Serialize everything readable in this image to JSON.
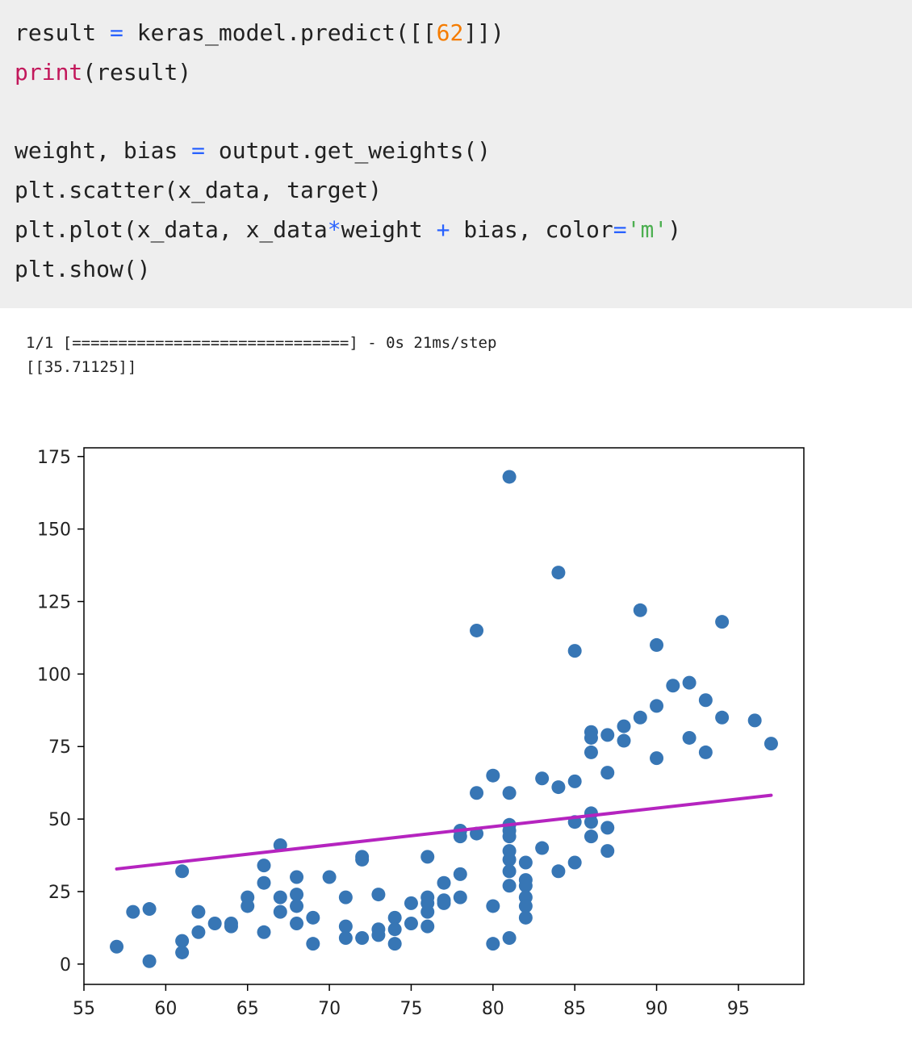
{
  "code_cell": {
    "lines": [
      [
        {
          "t": "result ",
          "c": ""
        },
        {
          "t": "=",
          "c": "op"
        },
        {
          "t": " keras_model.predict([[",
          "c": ""
        },
        {
          "t": "62",
          "c": "num"
        },
        {
          "t": "]])",
          "c": ""
        }
      ],
      [
        {
          "t": "print",
          "c": "kw"
        },
        {
          "t": "(result)",
          "c": ""
        }
      ],
      [],
      [
        {
          "t": "weight, bias ",
          "c": ""
        },
        {
          "t": "=",
          "c": "op"
        },
        {
          "t": " output.get_weights()",
          "c": ""
        }
      ],
      [
        {
          "t": "plt.scatter(x_data, target)",
          "c": ""
        }
      ],
      [
        {
          "t": "plt.plot(x_data, x_data",
          "c": ""
        },
        {
          "t": "*",
          "c": "op"
        },
        {
          "t": "weight ",
          "c": ""
        },
        {
          "t": "+",
          "c": "op"
        },
        {
          "t": " bias, color",
          "c": ""
        },
        {
          "t": "=",
          "c": "op"
        },
        {
          "t": "'m'",
          "c": "str"
        },
        {
          "t": ")",
          "c": ""
        }
      ],
      [
        {
          "t": "plt.show()",
          "c": ""
        }
      ]
    ]
  },
  "output": {
    "progress_line": "1/1 [==============================] - 0s 21ms/step",
    "result_line": "[[35.71125]]"
  },
  "chart_data": {
    "type": "scatter",
    "title": "",
    "xlabel": "",
    "ylabel": "",
    "xlim": [
      55,
      99
    ],
    "ylim": [
      -7,
      178
    ],
    "xticks": [
      55,
      60,
      65,
      70,
      75,
      80,
      85,
      90,
      95
    ],
    "yticks": [
      0,
      25,
      50,
      75,
      100,
      125,
      150,
      175
    ],
    "grid": false,
    "point_color": "#3776b5",
    "line_color": "#b524bf",
    "fit_line": {
      "x": [
        57,
        97
      ],
      "y": [
        32.8,
        58.2
      ]
    },
    "points": [
      [
        57,
        6
      ],
      [
        58,
        18
      ],
      [
        59,
        19
      ],
      [
        59,
        1
      ],
      [
        61,
        32
      ],
      [
        61,
        8
      ],
      [
        61,
        4
      ],
      [
        62,
        18
      ],
      [
        62,
        11
      ],
      [
        63,
        14
      ],
      [
        64,
        14
      ],
      [
        64,
        13
      ],
      [
        65,
        23
      ],
      [
        65,
        20
      ],
      [
        66,
        34
      ],
      [
        66,
        28
      ],
      [
        66,
        11
      ],
      [
        67,
        41
      ],
      [
        67,
        23
      ],
      [
        67,
        18
      ],
      [
        68,
        30
      ],
      [
        68,
        24
      ],
      [
        68,
        20
      ],
      [
        68,
        14
      ],
      [
        69,
        16
      ],
      [
        69,
        7
      ],
      [
        70,
        30
      ],
      [
        71,
        23
      ],
      [
        71,
        13
      ],
      [
        71,
        9
      ],
      [
        72,
        37
      ],
      [
        72,
        36
      ],
      [
        72,
        9
      ],
      [
        73,
        24
      ],
      [
        73,
        12
      ],
      [
        73,
        10
      ],
      [
        74,
        16
      ],
      [
        74,
        12
      ],
      [
        74,
        7
      ],
      [
        75,
        21
      ],
      [
        75,
        14
      ],
      [
        76,
        37
      ],
      [
        76,
        23
      ],
      [
        76,
        21
      ],
      [
        76,
        18
      ],
      [
        76,
        13
      ],
      [
        77,
        28
      ],
      [
        77,
        22
      ],
      [
        77,
        21
      ],
      [
        78,
        46
      ],
      [
        78,
        44
      ],
      [
        78,
        31
      ],
      [
        78,
        23
      ],
      [
        79,
        115
      ],
      [
        79,
        59
      ],
      [
        79,
        45
      ],
      [
        80,
        65
      ],
      [
        80,
        20
      ],
      [
        80,
        7
      ],
      [
        81,
        168
      ],
      [
        81,
        59
      ],
      [
        81,
        48
      ],
      [
        81,
        46
      ],
      [
        81,
        44
      ],
      [
        81,
        39
      ],
      [
        81,
        36
      ],
      [
        81,
        32
      ],
      [
        81,
        27
      ],
      [
        81,
        9
      ],
      [
        82,
        35
      ],
      [
        82,
        29
      ],
      [
        82,
        27
      ],
      [
        82,
        23
      ],
      [
        82,
        20
      ],
      [
        82,
        16
      ],
      [
        83,
        64
      ],
      [
        83,
        40
      ],
      [
        84,
        135
      ],
      [
        84,
        61
      ],
      [
        84,
        32
      ],
      [
        85,
        108
      ],
      [
        85,
        63
      ],
      [
        85,
        49
      ],
      [
        85,
        35
      ],
      [
        86,
        80
      ],
      [
        86,
        78
      ],
      [
        86,
        73
      ],
      [
        86,
        52
      ],
      [
        86,
        49
      ],
      [
        86,
        44
      ],
      [
        87,
        79
      ],
      [
        87,
        66
      ],
      [
        87,
        47
      ],
      [
        87,
        39
      ],
      [
        88,
        82
      ],
      [
        88,
        77
      ],
      [
        89,
        122
      ],
      [
        89,
        85
      ],
      [
        90,
        110
      ],
      [
        90,
        89
      ],
      [
        90,
        71
      ],
      [
        91,
        96
      ],
      [
        92,
        97
      ],
      [
        92,
        78
      ],
      [
        93,
        91
      ],
      [
        93,
        73
      ],
      [
        94,
        118
      ],
      [
        94,
        85
      ],
      [
        96,
        84
      ],
      [
        97,
        76
      ]
    ]
  }
}
